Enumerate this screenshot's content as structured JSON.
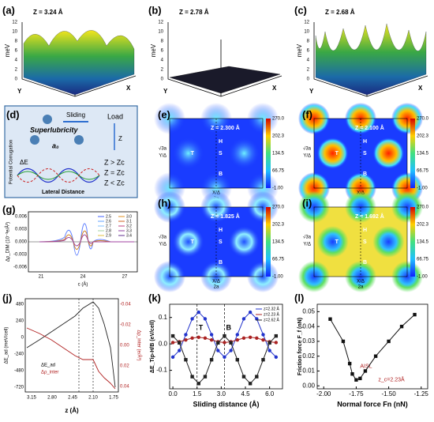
{
  "panels": {
    "a": {
      "label": "(a)",
      "z": "Z = 3.24 Å",
      "unit": "meV",
      "ticks": [
        0,
        2,
        4,
        6,
        8,
        10,
        12
      ],
      "x": "X",
      "y": "Y"
    },
    "b": {
      "label": "(b)",
      "z": "Z = 2.78 Å",
      "unit": "meV",
      "ticks": [
        0,
        2,
        4,
        6,
        8,
        10,
        12
      ],
      "x": "X",
      "y": "Y"
    },
    "c": {
      "label": "(c)",
      "z": "Z = 2.68 Å",
      "unit": "meV",
      "ticks": [
        0,
        2,
        4,
        6,
        8,
        10,
        12
      ],
      "x": "X",
      "y": "Y"
    },
    "d": {
      "label": "(d)",
      "sliding": "Sliding",
      "load": "Load",
      "superlubricity": "Superlubricity",
      "a0": "a₀",
      "zaxis": "Z",
      "de": "ΔE",
      "ylabel": "Potential Corrugation",
      "xlabel": "Lateral Distance",
      "legend": [
        "Z > Zc",
        "Z = Zc",
        "Z < Zc"
      ]
    },
    "e": {
      "label": "(e)",
      "z": "Z = 2.300 Å",
      "colorbar": [
        "270.0",
        "202.3",
        "134.5",
        "66.75",
        "-1.00"
      ],
      "sites": [
        "T",
        "H",
        "S",
        "B"
      ],
      "xlabel": "X/Δ",
      "xspan": "2a",
      "ylabel": "√3a",
      "ysub": "Y/Δ"
    },
    "f": {
      "label": "(f)",
      "z": "Z = 2.100 Å",
      "colorbar": [
        "270.0",
        "202.3",
        "134.5",
        "66.75",
        "-1.00"
      ],
      "sites": [
        "T",
        "H",
        "S",
        "B"
      ],
      "xlabel": "X/Δ",
      "xspan": "2a",
      "ylabel": "√3a",
      "ysub": "Y/Δ"
    },
    "h": {
      "label": "(h)",
      "z": "Z = 1.825 Å",
      "colorbar": [
        "270.0",
        "202.3",
        "134.5",
        "66.75",
        "-1.00"
      ],
      "sites": [
        "T",
        "H",
        "S",
        "B"
      ],
      "xlabel": "X/Δ",
      "xspan": "2a",
      "ylabel": "√3a",
      "ysub": "Y/Δ"
    },
    "i": {
      "label": "(i)",
      "z": "Z = 1.692 Å",
      "colorbar": [
        "270.0",
        "202.3",
        "134.5",
        "66.75",
        "-1.00"
      ],
      "sites": [
        "T",
        "H",
        "S",
        "B"
      ],
      "xlabel": "X/Δ",
      "xspan": "2a",
      "ylabel": "√3a",
      "ysub": "Y/Δ"
    },
    "g": {
      "label": "(g)",
      "ylabel": "Δρ_DIM (10⁻³e/Å³)",
      "xlabel": "c (Å)",
      "xticks": [
        21,
        24,
        27
      ],
      "yticks": [
        "0.006",
        "0.003",
        "0.000",
        "-0.003",
        "-0.006"
      ],
      "legend": [
        "2.5",
        "2.6",
        "2.7",
        "2.8",
        "2.9",
        "3.0",
        "3.1",
        "3.2",
        "3.3",
        "3.4"
      ]
    },
    "j": {
      "label": "(j)",
      "ylabel": "ΔE_ad (meV/cell)",
      "y2label": "Δρ_inter (e/Å³)",
      "xlabel": "z (Å)",
      "xticks": [
        "3.15",
        "2.80",
        "2.45",
        "2.10",
        "1.75"
      ],
      "yticks": [
        "480",
        "240",
        "0",
        "-240",
        "-480",
        "-720"
      ],
      "y2ticks": [
        "-0.04",
        "-0.02",
        "0.00",
        "0.02",
        "0.04"
      ],
      "legend": [
        "ΔE_ad",
        "Δρ_inter"
      ]
    },
    "k": {
      "label": "(k)"
    },
    "l": {
      "label": "(l)"
    }
  },
  "chart_data": [
    {
      "type": "line",
      "ylabel": "ΔE_Tip-H/B (eV/cell)",
      "xlabel": "Sliding distance (Å)",
      "x": [
        0,
        0.4,
        0.8,
        1.2,
        1.6,
        2.0,
        2.4,
        2.8,
        3.2,
        3.6,
        4.0,
        4.4,
        4.8,
        5.2,
        5.6,
        6.0,
        6.4
      ],
      "xlim": [
        -0.2,
        6.8
      ],
      "ylim": [
        -0.17,
        0.15
      ],
      "xticks": [
        {
          "value": 0,
          "label": "0.0"
        },
        {
          "value": 1.5,
          "label": "1.5"
        },
        {
          "value": 3,
          "label": "3.0"
        },
        {
          "value": 4.5,
          "label": "4.5"
        },
        {
          "value": 6,
          "label": "6.0"
        }
      ],
      "yticks": [
        {
          "value": -0.1,
          "label": "-0.1"
        },
        {
          "value": 0,
          "label": "0.0"
        },
        {
          "value": 0.1,
          "label": "0.1"
        }
      ],
      "series": [
        {
          "name": "z=2.32 Å",
          "color": "#2233cc",
          "marker": "circle",
          "values": [
            -0.05,
            -0.025,
            0.035,
            0.095,
            0.12,
            0.095,
            0.035,
            -0.025,
            -0.05,
            -0.025,
            0.035,
            0.095,
            0.12,
            0.095,
            0.035,
            -0.025,
            -0.05
          ]
        },
        {
          "name": "z=2.23 Å",
          "color": "#aa2222",
          "marker": "circle",
          "values": [
            0.005,
            0.008,
            0.015,
            0.022,
            0.025,
            0.022,
            0.015,
            0.008,
            0.005,
            0.008,
            0.015,
            0.022,
            0.025,
            0.022,
            0.015,
            0.008,
            0.005
          ]
        },
        {
          "name": "z=2.62 Å",
          "color": "#222222",
          "marker": "square",
          "values": [
            0.03,
            0.004,
            -0.06,
            -0.124,
            -0.15,
            -0.124,
            -0.06,
            0.004,
            0.03,
            0.004,
            -0.06,
            -0.124,
            -0.15,
            -0.124,
            -0.06,
            0.004,
            0.03
          ]
        }
      ],
      "annotations": [
        {
          "text": "T",
          "x": 1.5
        },
        {
          "text": "B",
          "x": 3.2
        }
      ]
    },
    {
      "type": "line",
      "ylabel": "Friction force F_f (nN)",
      "xlabel": "Normal force Fn (nN)",
      "x": [
        -1.95,
        -1.85,
        -1.8,
        -1.78,
        -1.75,
        -1.72,
        -1.68,
        -1.6,
        -1.5,
        -1.4,
        -1.3
      ],
      "xlim": [
        -2.05,
        -1.2
      ],
      "ylim": [
        -0.002,
        0.055
      ],
      "xticks": [
        {
          "value": -2,
          "label": "-2.00"
        },
        {
          "value": -1.75,
          "label": "-1.75"
        },
        {
          "value": -1.5,
          "label": "-1.50"
        },
        {
          "value": -1.25,
          "label": "-1.25"
        }
      ],
      "yticks": [
        {
          "value": 0,
          "label": "0.00"
        },
        {
          "value": 0.01,
          "label": "0.01"
        },
        {
          "value": 0.02,
          "label": "0.02"
        },
        {
          "value": 0.03,
          "label": "0.03"
        },
        {
          "value": 0.04,
          "label": "0.04"
        },
        {
          "value": 0.05,
          "label": "0.05"
        }
      ],
      "series": [
        {
          "color": "#111111",
          "marker": "square",
          "values": [
            0.045,
            0.03,
            0.015,
            0.008,
            0.004,
            0.005,
            0.01,
            0.02,
            0.03,
            0.04,
            0.048
          ]
        }
      ],
      "notes": [
        {
          "text": "AISL",
          "x": -1.72,
          "y": 0.013
        },
        {
          "text": "z_c=2.23Å",
          "x": -1.58,
          "y": 0.004
        }
      ]
    }
  ]
}
